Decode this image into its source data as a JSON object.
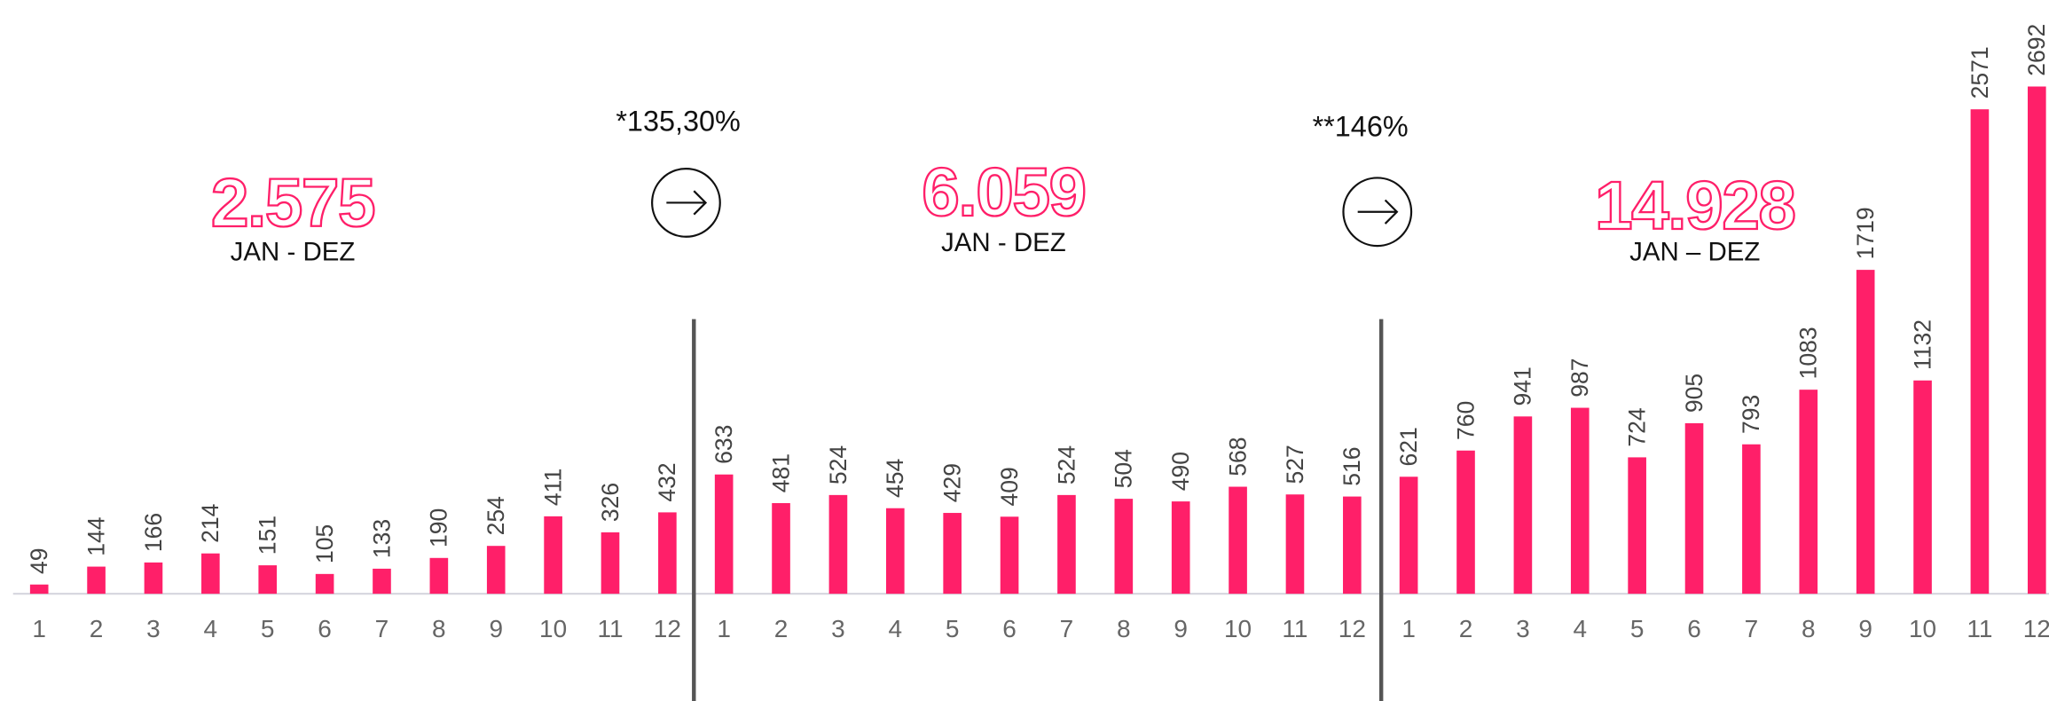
{
  "chart_data": [
    {
      "type": "bar",
      "title": "2.575",
      "subtitle": "JAN - DEZ",
      "color": "#ff1f69",
      "categories": [
        "1",
        "2",
        "3",
        "4",
        "5",
        "6",
        "7",
        "8",
        "9",
        "10",
        "11",
        "12"
      ],
      "values": [
        49,
        144,
        166,
        214,
        151,
        105,
        133,
        190,
        254,
        411,
        326,
        432
      ],
      "ylim": [
        0,
        2700
      ]
    },
    {
      "type": "bar",
      "title": "6.059",
      "subtitle": "JAN - DEZ",
      "color": "#ff1f69",
      "categories": [
        "1",
        "2",
        "3",
        "4",
        "5",
        "6",
        "7",
        "8",
        "9",
        "10",
        "11",
        "12"
      ],
      "values": [
        633,
        481,
        524,
        454,
        429,
        409,
        524,
        504,
        490,
        568,
        527,
        516
      ],
      "ylim": [
        0,
        2700
      ]
    },
    {
      "type": "bar",
      "title": "14.928",
      "subtitle": "JAN – DEZ",
      "color": "#ff1f69",
      "categories": [
        "1",
        "2",
        "3",
        "4",
        "5",
        "6",
        "7",
        "8",
        "9",
        "10",
        "11",
        "12"
      ],
      "values": [
        621,
        760,
        941,
        987,
        724,
        905,
        793,
        1083,
        1719,
        1132,
        2571,
        2692
      ],
      "ylim": [
        0,
        2700
      ]
    }
  ],
  "annotations": [
    "*135,30%",
    "**146%"
  ]
}
